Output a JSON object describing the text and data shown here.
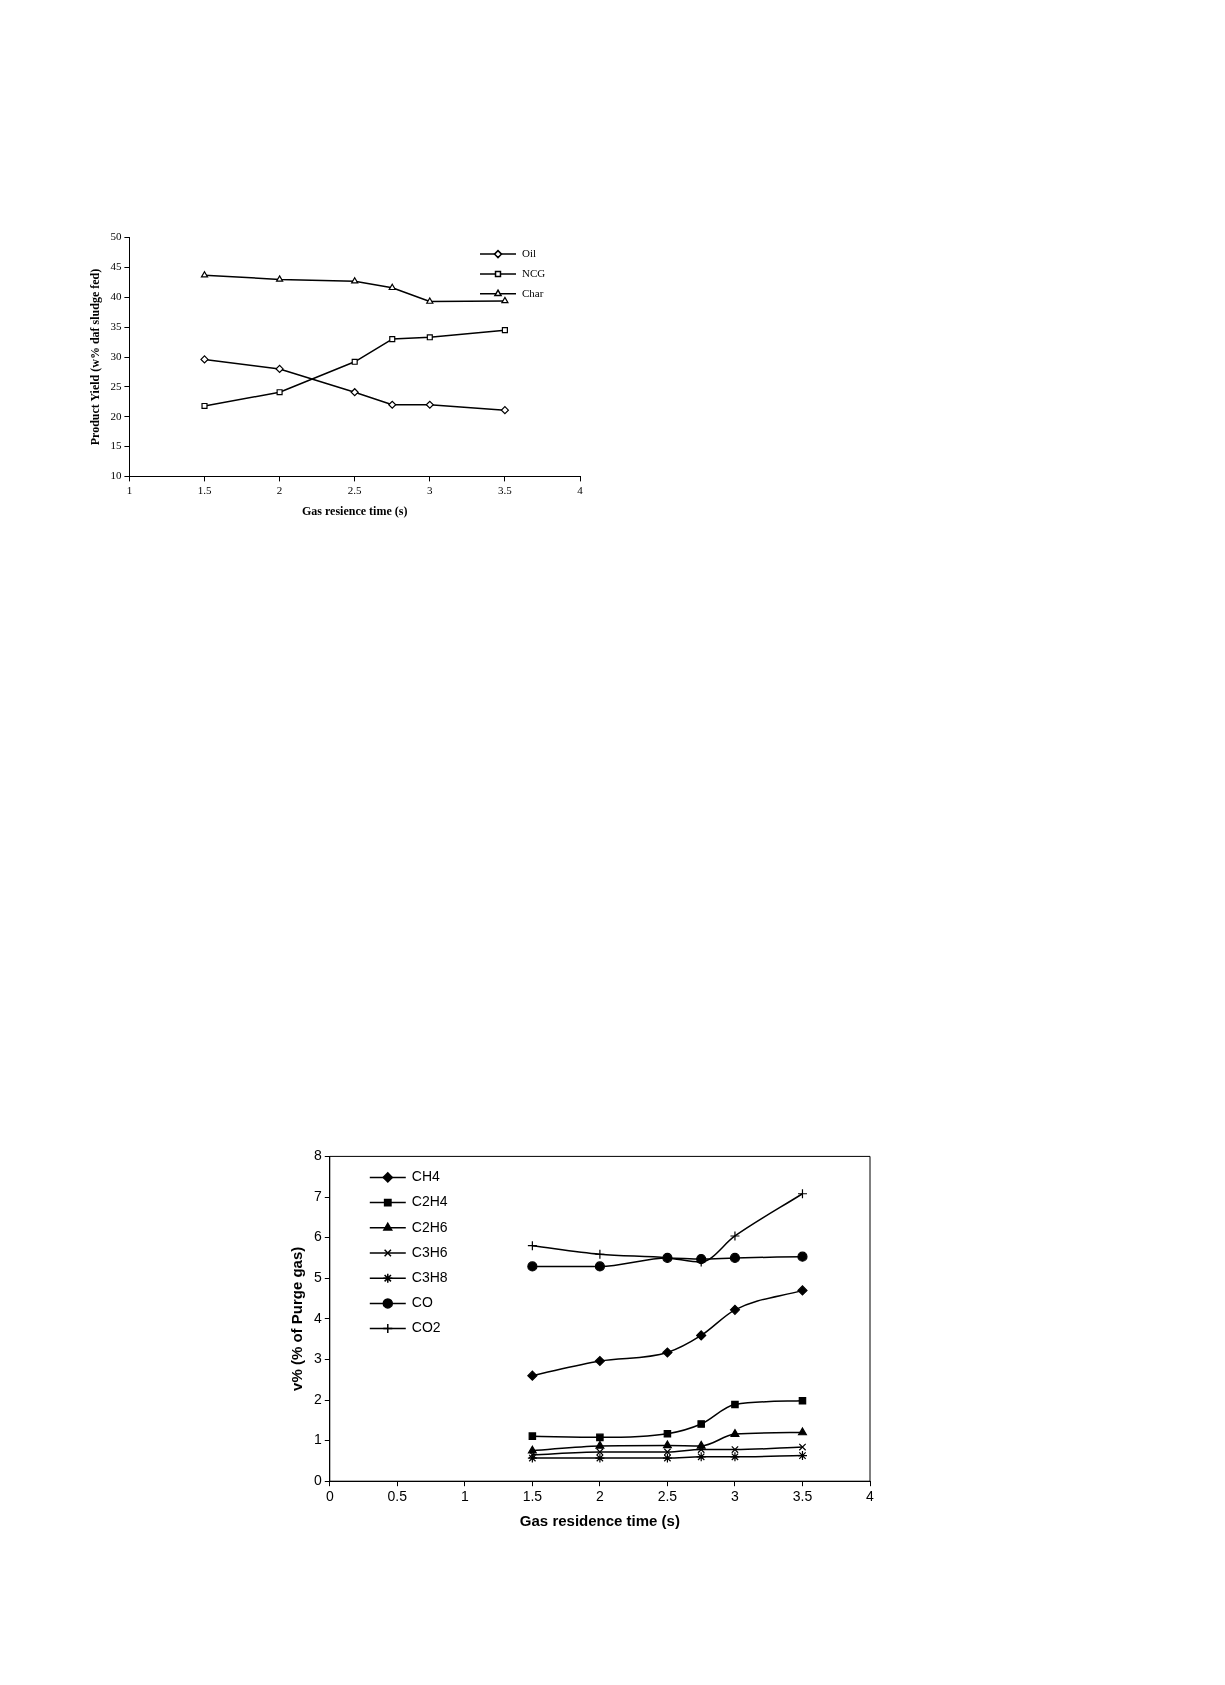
{
  "chart_data": [
    {
      "type": "line",
      "xlabel": "Gas resience time (s)",
      "ylabel": "Product Yield (w% daf sludge fed)",
      "x": [
        1.5,
        2,
        2.5,
        2.75,
        3,
        3.5
      ],
      "xlim": [
        1,
        4
      ],
      "xticks": [
        1,
        1.5,
        2,
        2.5,
        3,
        3.5,
        4
      ],
      "ylim": [
        10,
        50
      ],
      "yticks": [
        10,
        15,
        20,
        25,
        30,
        35,
        40,
        45,
        50
      ],
      "grid": false,
      "legend": "top right",
      "line_style": "solid",
      "series": [
        {
          "name": "Oil",
          "color": "#000000",
          "marker": "diamond",
          "values": [
            29.6,
            28,
            24.1,
            22,
            22,
            21.1
          ]
        },
        {
          "name": "NCG",
          "color": "#000000",
          "marker": "square",
          "values": [
            21.8,
            24.1,
            29.2,
            33,
            33.3,
            34.5
          ]
        },
        {
          "name": "Char",
          "color": "#000000",
          "marker": "triangle",
          "values": [
            43.7,
            43,
            42.7,
            41.6,
            39.3,
            39.4
          ]
        }
      ]
    },
    {
      "type": "line",
      "xlabel": "Gas residence time (s)",
      "ylabel": "v% (% of Purge gas)",
      "x": [
        1.5,
        2,
        2.5,
        2.75,
        3,
        3.5
      ],
      "xlim": [
        0,
        4
      ],
      "xticks": [
        0,
        0.5,
        1,
        1.5,
        2,
        2.5,
        3,
        3.5,
        4
      ],
      "ylim": [
        0,
        8
      ],
      "yticks": [
        0,
        1,
        2,
        3,
        4,
        5,
        6,
        7,
        8
      ],
      "grid": false,
      "legend": "top left",
      "line_style": "solid",
      "series": [
        {
          "name": "CH4",
          "color": "#000000",
          "marker": "diamond",
          "values": [
            2.6,
            2.96,
            3.17,
            3.59,
            4.22,
            4.7
          ]
        },
        {
          "name": "C2H4",
          "color": "#000000",
          "marker": "square",
          "values": [
            1.11,
            1.08,
            1.17,
            1.41,
            1.89,
            1.98
          ]
        },
        {
          "name": "C2H6",
          "color": "#000000",
          "marker": "triangle",
          "values": [
            0.75,
            0.87,
            0.88,
            0.87,
            1.16,
            1.2
          ]
        },
        {
          "name": "C3H6",
          "color": "#000000",
          "marker": "x",
          "values": [
            0.65,
            0.72,
            0.72,
            0.78,
            0.78,
            0.84
          ]
        },
        {
          "name": "C3H8",
          "color": "#000000",
          "marker": "cross",
          "values": [
            0.57,
            0.57,
            0.57,
            0.6,
            0.6,
            0.63
          ]
        },
        {
          "name": "CO",
          "color": "#000000",
          "marker": "circle",
          "values": [
            5.29,
            5.29,
            5.5,
            5.47,
            5.5,
            5.53
          ]
        },
        {
          "name": "CO2",
          "color": "#000000",
          "marker": "plus",
          "values": [
            5.8,
            5.59,
            5.5,
            5.4,
            6.04,
            7.08
          ]
        }
      ]
    }
  ]
}
